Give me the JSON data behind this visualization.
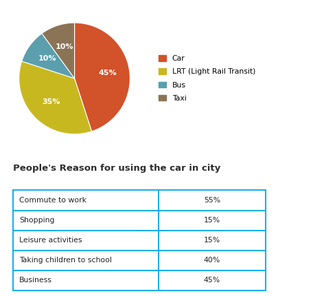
{
  "pie_labels": [
    "Car",
    "LRT (Light Rail Transit)",
    "Bus",
    "Taxi"
  ],
  "pie_values": [
    45,
    35,
    10,
    10
  ],
  "pie_colors": [
    "#D2522A",
    "#C8B820",
    "#5B9EAD",
    "#8B7355"
  ],
  "pie_autopct_labels": [
    "45%",
    "35%",
    "10%",
    "10%"
  ],
  "legend_labels": [
    "Car",
    "LRT (Light Rail Transit)",
    "Bus",
    "Taxi"
  ],
  "table_title": "People's Reason for using the car in city",
  "table_rows": [
    [
      "Commute to work",
      "55%"
    ],
    [
      "Shopping",
      "15%"
    ],
    [
      "Leisure activities",
      "15%"
    ],
    [
      "Taking children to school",
      "40%"
    ],
    [
      "Business",
      "45%"
    ]
  ],
  "table_border_color": "#1BB0E8",
  "background_color": "#FFFFFF",
  "pie_label_color": "#FFFFFF",
  "title_color": "#2E2E2E",
  "text_color": "#222222"
}
